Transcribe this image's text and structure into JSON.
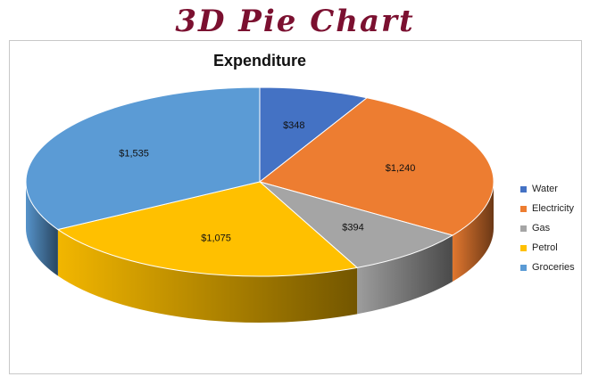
{
  "banner": {
    "title": "3D Pie Chart",
    "color": "#7b1030"
  },
  "chart_data": {
    "type": "pie",
    "title": "Expenditure",
    "categories": [
      "Water",
      "Electricity",
      "Gas",
      "Petrol",
      "Groceries"
    ],
    "values": [
      348,
      1240,
      394,
      1075,
      1535
    ],
    "labels": [
      "$348",
      "$1,240",
      "$394",
      "$1,075",
      "$1,535"
    ],
    "colors": [
      "#4472c4",
      "#ed7d31",
      "#a5a5a5",
      "#ffc000",
      "#5b9bd5"
    ],
    "legend_position": "right",
    "style": "3d"
  }
}
